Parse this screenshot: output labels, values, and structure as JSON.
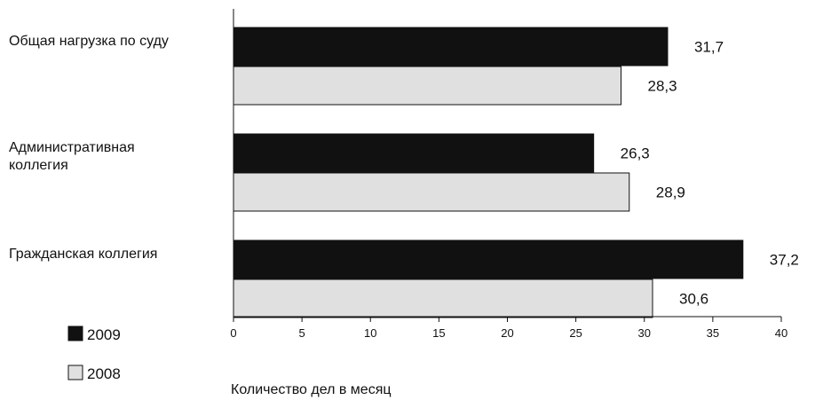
{
  "chart_data": {
    "type": "bar",
    "orientation": "horizontal",
    "categories": [
      [
        "Общая нагрузка по суду"
      ],
      [
        "Административная",
        "коллегия"
      ],
      [
        "Гражданская коллегия"
      ]
    ],
    "series": [
      {
        "name": "2009",
        "values": [
          31.7,
          26.3,
          37.2
        ],
        "value_labels": [
          "31,7",
          "26,3",
          "37,2"
        ],
        "color": "#111111"
      },
      {
        "name": "2008",
        "values": [
          28.3,
          28.9,
          30.6
        ],
        "value_labels": [
          "28,3",
          "28,9",
          "30,6"
        ],
        "color": "#e0e0e0"
      }
    ],
    "xlim": [
      0,
      40
    ],
    "xticks": [
      "0",
      "5",
      "10",
      "15",
      "20",
      "25",
      "30",
      "35",
      "40"
    ],
    "xlabel": "Количество дел в месяц",
    "grid": false,
    "legend_position": "bottom-left"
  }
}
